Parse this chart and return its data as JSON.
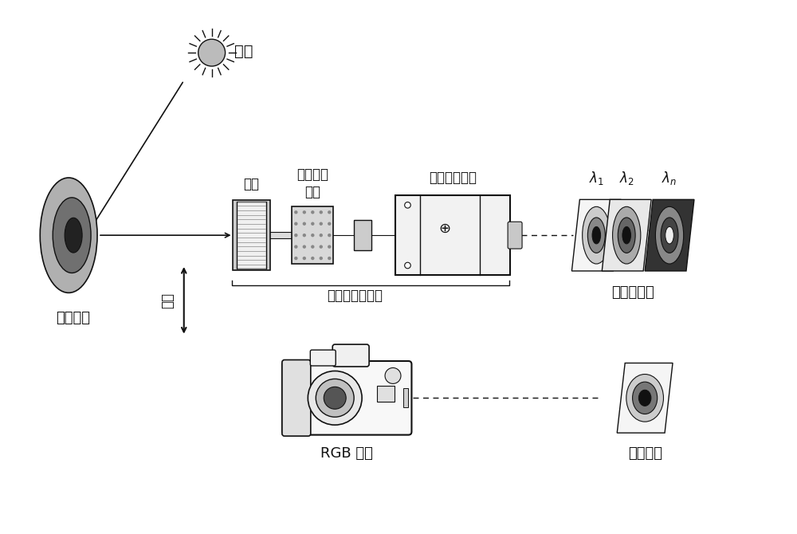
{
  "bg_color": "#ffffff",
  "text_color": "#111111",
  "labels": {
    "light_source": "光源",
    "subject": "拍摄物体",
    "lens": "镜头",
    "tunable_filter": "可调谐滤\n波器",
    "mono_camera": "工业单色相机",
    "multispectral_device": "多光谱成像装置",
    "multispectral_image": "多光谱图像",
    "color_image": "彩色图像",
    "rgb_camera": "RGB 相机",
    "switch": "切换"
  },
  "gray_dark": "#111111",
  "gray_mid": "#555555",
  "gray_light": "#999999",
  "gray_lighter": "#bbbbbb",
  "gray_lightest": "#e0e0e0",
  "gray_white": "#f2f2f2"
}
